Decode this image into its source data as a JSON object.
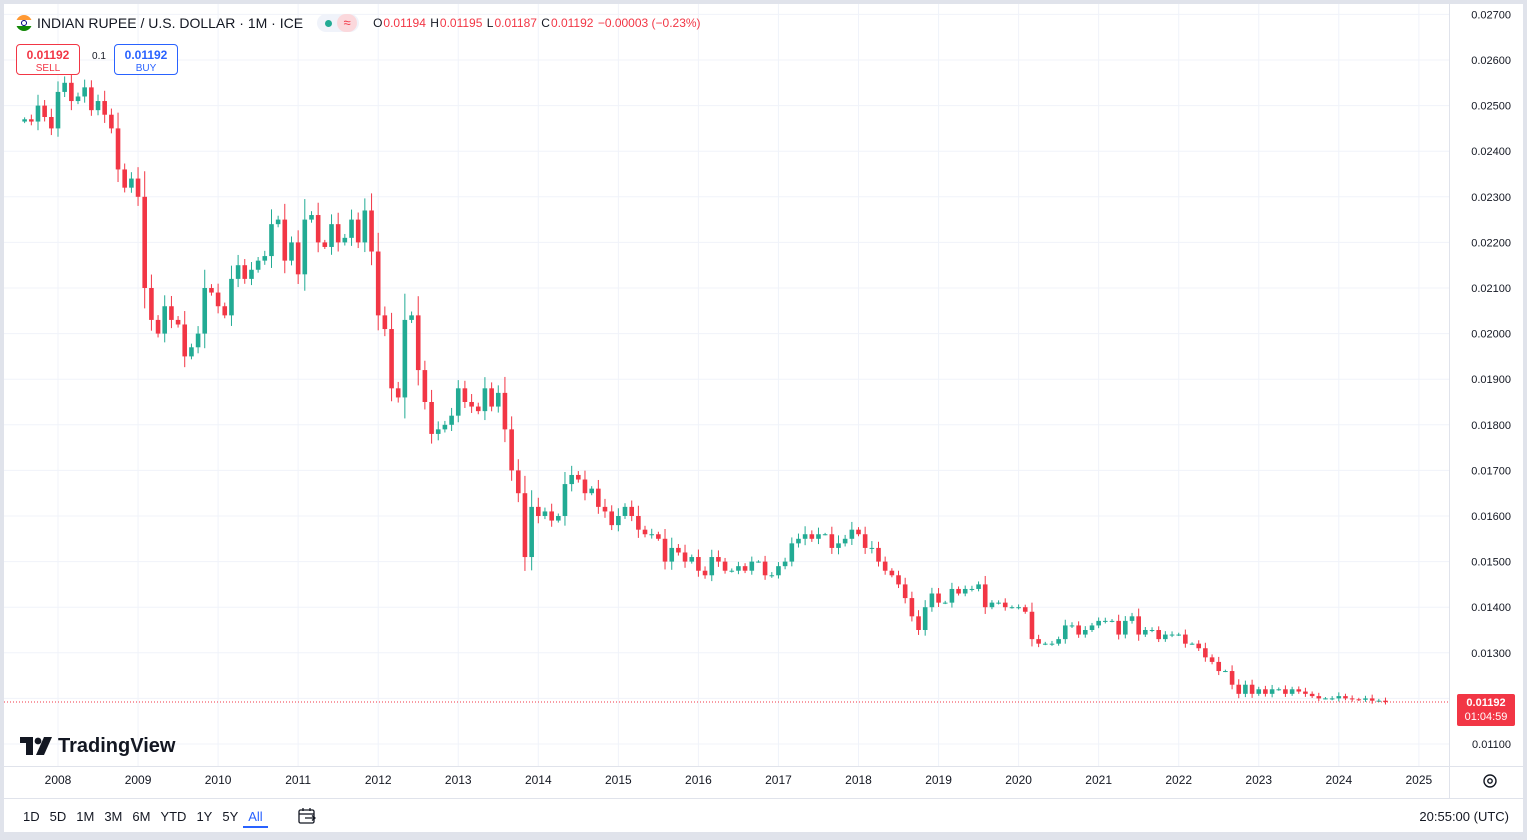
{
  "legend": {
    "symbol": "INDIAN RUPEE / U.S. DOLLAR · 1M · ICE",
    "ohlc": [
      {
        "k": "O",
        "v": "0.01194"
      },
      {
        "k": "H",
        "v": "0.01195"
      },
      {
        "k": "L",
        "v": "0.01187"
      },
      {
        "k": "C",
        "v": "0.01192"
      }
    ],
    "change": "−0.00003 (−0.23%)",
    "status_icon": "green-dot-icon",
    "mode_icon": "wave-icon"
  },
  "trade": {
    "sell_price": "0.01192",
    "sell_label": "SELL",
    "spread": "0.1",
    "buy_price": "0.01192",
    "buy_label": "BUY"
  },
  "price_tag": {
    "value": "0.01192",
    "countdown": "01:04:59"
  },
  "logo": {
    "text": "TradingView"
  },
  "bottom_bar": {
    "ranges": [
      "1D",
      "5D",
      "1M",
      "3M",
      "6M",
      "YTD",
      "1Y",
      "5Y",
      "All"
    ],
    "active_range": "All",
    "clock": "20:55:00 (UTC)"
  },
  "colors": {
    "up": "#22ab94",
    "down": "#f23645",
    "grid": "#f0f3fa"
  },
  "chart_data": {
    "type": "candlestick",
    "timeframe": "1M",
    "y_ticks": [
      "0.01100",
      "0.01200",
      "0.01300",
      "0.01400",
      "0.01500",
      "0.01600",
      "0.01700",
      "0.01800",
      "0.01900",
      "0.02000",
      "0.02100",
      "0.02200",
      "0.02300",
      "0.02400",
      "0.02500",
      "0.02600",
      "0.02700"
    ],
    "ylim": [
      0.01075,
      0.02712
    ],
    "x_ticks": [
      "2008",
      "2009",
      "2010",
      "2011",
      "2012",
      "2013",
      "2014",
      "2015",
      "2016",
      "2017",
      "2018",
      "2019",
      "2020",
      "2021",
      "2022",
      "2023",
      "2024",
      "2025"
    ],
    "xlim": [
      2007.4,
      2025.3
    ],
    "last_price": 0.01192,
    "grid": true,
    "closes": [
      [
        2007.583,
        0.0247
      ],
      [
        2007.667,
        0.02465
      ],
      [
        2007.75,
        0.025
      ],
      [
        2007.833,
        0.02475
      ],
      [
        2007.917,
        0.0245
      ],
      [
        2008.0,
        0.0253
      ],
      [
        2008.083,
        0.0255
      ],
      [
        2008.167,
        0.0251
      ],
      [
        2008.25,
        0.0252
      ],
      [
        2008.333,
        0.0254
      ],
      [
        2008.417,
        0.0249
      ],
      [
        2008.5,
        0.0251
      ],
      [
        2008.583,
        0.0248
      ],
      [
        2008.667,
        0.0245
      ],
      [
        2008.75,
        0.0236
      ],
      [
        2008.833,
        0.0232
      ],
      [
        2008.917,
        0.0234
      ],
      [
        2009.0,
        0.023
      ],
      [
        2009.083,
        0.021
      ],
      [
        2009.167,
        0.0203
      ],
      [
        2009.25,
        0.02
      ],
      [
        2009.333,
        0.0206
      ],
      [
        2009.417,
        0.0203
      ],
      [
        2009.5,
        0.0202
      ],
      [
        2009.583,
        0.0195
      ],
      [
        2009.667,
        0.0197
      ],
      [
        2009.75,
        0.02
      ],
      [
        2009.833,
        0.021
      ],
      [
        2009.917,
        0.0209
      ],
      [
        2010.0,
        0.0206
      ],
      [
        2010.083,
        0.0204
      ],
      [
        2010.167,
        0.0212
      ],
      [
        2010.25,
        0.0215
      ],
      [
        2010.333,
        0.0212
      ],
      [
        2010.417,
        0.0214
      ],
      [
        2010.5,
        0.0216
      ],
      [
        2010.583,
        0.0217
      ],
      [
        2010.667,
        0.0224
      ],
      [
        2010.75,
        0.0225
      ],
      [
        2010.833,
        0.0216
      ],
      [
        2010.917,
        0.022
      ],
      [
        2011.0,
        0.0213
      ],
      [
        2011.083,
        0.0225
      ],
      [
        2011.167,
        0.0226
      ],
      [
        2011.25,
        0.022
      ],
      [
        2011.333,
        0.0219
      ],
      [
        2011.417,
        0.0224
      ],
      [
        2011.5,
        0.022
      ],
      [
        2011.583,
        0.0221
      ],
      [
        2011.667,
        0.0225
      ],
      [
        2011.75,
        0.022
      ],
      [
        2011.833,
        0.0227
      ],
      [
        2011.917,
        0.0218
      ],
      [
        2012.0,
        0.0204
      ],
      [
        2012.083,
        0.0201
      ],
      [
        2012.167,
        0.0188
      ],
      [
        2012.25,
        0.0186
      ],
      [
        2012.333,
        0.0203
      ],
      [
        2012.417,
        0.0204
      ],
      [
        2012.5,
        0.0192
      ],
      [
        2012.583,
        0.0185
      ],
      [
        2012.667,
        0.0178
      ],
      [
        2012.75,
        0.0179
      ],
      [
        2012.833,
        0.018
      ],
      [
        2012.917,
        0.0182
      ],
      [
        2013.0,
        0.0188
      ],
      [
        2013.083,
        0.0185
      ],
      [
        2013.167,
        0.0184
      ],
      [
        2013.25,
        0.0183
      ],
      [
        2013.333,
        0.0188
      ],
      [
        2013.417,
        0.0184
      ],
      [
        2013.5,
        0.0187
      ],
      [
        2013.583,
        0.0179
      ],
      [
        2013.667,
        0.017
      ],
      [
        2013.75,
        0.0165
      ],
      [
        2013.833,
        0.0151
      ],
      [
        2013.917,
        0.0162
      ],
      [
        2014.0,
        0.016
      ],
      [
        2014.083,
        0.0161
      ],
      [
        2014.167,
        0.0159
      ],
      [
        2014.25,
        0.016
      ],
      [
        2014.333,
        0.0167
      ],
      [
        2014.417,
        0.0169
      ],
      [
        2014.5,
        0.0168
      ],
      [
        2014.583,
        0.0165
      ],
      [
        2014.667,
        0.0166
      ],
      [
        2014.75,
        0.0162
      ],
      [
        2014.833,
        0.0161
      ],
      [
        2014.917,
        0.0158
      ],
      [
        2015.0,
        0.016
      ],
      [
        2015.083,
        0.0162
      ],
      [
        2015.167,
        0.016
      ],
      [
        2015.25,
        0.0157
      ],
      [
        2015.333,
        0.0156
      ],
      [
        2015.417,
        0.0156
      ],
      [
        2015.5,
        0.0155
      ],
      [
        2015.583,
        0.015
      ],
      [
        2015.667,
        0.0153
      ],
      [
        2015.75,
        0.0152
      ],
      [
        2015.833,
        0.015
      ],
      [
        2015.917,
        0.0151
      ],
      [
        2016.0,
        0.0148
      ],
      [
        2016.083,
        0.0147
      ],
      [
        2016.167,
        0.0151
      ],
      [
        2016.25,
        0.015
      ],
      [
        2016.333,
        0.0148
      ],
      [
        2016.417,
        0.0148
      ],
      [
        2016.5,
        0.0149
      ],
      [
        2016.583,
        0.0148
      ],
      [
        2016.667,
        0.015
      ],
      [
        2016.75,
        0.015
      ],
      [
        2016.833,
        0.0147
      ],
      [
        2016.917,
        0.0147
      ],
      [
        2017.0,
        0.0149
      ],
      [
        2017.083,
        0.015
      ],
      [
        2017.167,
        0.0154
      ],
      [
        2017.25,
        0.0155
      ],
      [
        2017.333,
        0.0156
      ],
      [
        2017.417,
        0.0155
      ],
      [
        2017.5,
        0.0156
      ],
      [
        2017.583,
        0.0156
      ],
      [
        2017.667,
        0.0153
      ],
      [
        2017.75,
        0.0154
      ],
      [
        2017.833,
        0.0155
      ],
      [
        2017.917,
        0.0157
      ],
      [
        2018.0,
        0.0156
      ],
      [
        2018.083,
        0.0153
      ],
      [
        2018.167,
        0.0153
      ],
      [
        2018.25,
        0.015
      ],
      [
        2018.333,
        0.0148
      ],
      [
        2018.417,
        0.0147
      ],
      [
        2018.5,
        0.0145
      ],
      [
        2018.583,
        0.0142
      ],
      [
        2018.667,
        0.0138
      ],
      [
        2018.75,
        0.0135
      ],
      [
        2018.833,
        0.014
      ],
      [
        2018.917,
        0.0143
      ],
      [
        2019.0,
        0.0141
      ],
      [
        2019.083,
        0.0141
      ],
      [
        2019.167,
        0.0144
      ],
      [
        2019.25,
        0.0143
      ],
      [
        2019.333,
        0.0144
      ],
      [
        2019.417,
        0.0144
      ],
      [
        2019.5,
        0.0145
      ],
      [
        2019.583,
        0.014
      ],
      [
        2019.667,
        0.0141
      ],
      [
        2019.75,
        0.0141
      ],
      [
        2019.833,
        0.014
      ],
      [
        2019.917,
        0.014
      ],
      [
        2020.0,
        0.014
      ],
      [
        2020.083,
        0.0139
      ],
      [
        2020.167,
        0.0133
      ],
      [
        2020.25,
        0.0132
      ],
      [
        2020.333,
        0.0132
      ],
      [
        2020.417,
        0.0132
      ],
      [
        2020.5,
        0.0133
      ],
      [
        2020.583,
        0.0136
      ],
      [
        2020.667,
        0.0136
      ],
      [
        2020.75,
        0.0134
      ],
      [
        2020.833,
        0.0135
      ],
      [
        2020.917,
        0.0136
      ],
      [
        2021.0,
        0.0137
      ],
      [
        2021.083,
        0.0137
      ],
      [
        2021.167,
        0.0137
      ],
      [
        2021.25,
        0.0134
      ],
      [
        2021.333,
        0.0137
      ],
      [
        2021.417,
        0.0138
      ],
      [
        2021.5,
        0.0134
      ],
      [
        2021.583,
        0.0135
      ],
      [
        2021.667,
        0.0135
      ],
      [
        2021.75,
        0.0133
      ],
      [
        2021.833,
        0.0134
      ],
      [
        2021.917,
        0.0134
      ],
      [
        2022.0,
        0.0134
      ],
      [
        2022.083,
        0.0132
      ],
      [
        2022.167,
        0.0132
      ],
      [
        2022.25,
        0.0131
      ],
      [
        2022.333,
        0.0129
      ],
      [
        2022.417,
        0.0128
      ],
      [
        2022.5,
        0.0126
      ],
      [
        2022.583,
        0.0126
      ],
      [
        2022.667,
        0.0123
      ],
      [
        2022.75,
        0.0121
      ],
      [
        2022.833,
        0.0123
      ],
      [
        2022.917,
        0.0121
      ],
      [
        2023.0,
        0.0122
      ],
      [
        2023.083,
        0.0121
      ],
      [
        2023.167,
        0.0122
      ],
      [
        2023.25,
        0.0122
      ],
      [
        2023.333,
        0.0121
      ],
      [
        2023.417,
        0.0122
      ],
      [
        2023.5,
        0.01215
      ],
      [
        2023.583,
        0.0121
      ],
      [
        2023.667,
        0.01205
      ],
      [
        2023.75,
        0.012
      ],
      [
        2023.833,
        0.012
      ],
      [
        2023.917,
        0.012
      ],
      [
        2024.0,
        0.01205
      ],
      [
        2024.083,
        0.012
      ],
      [
        2024.167,
        0.01198
      ],
      [
        2024.25,
        0.01197
      ],
      [
        2024.333,
        0.012
      ],
      [
        2024.417,
        0.01195
      ],
      [
        2024.5,
        0.01195
      ],
      [
        2024.583,
        0.01192
      ]
    ]
  }
}
